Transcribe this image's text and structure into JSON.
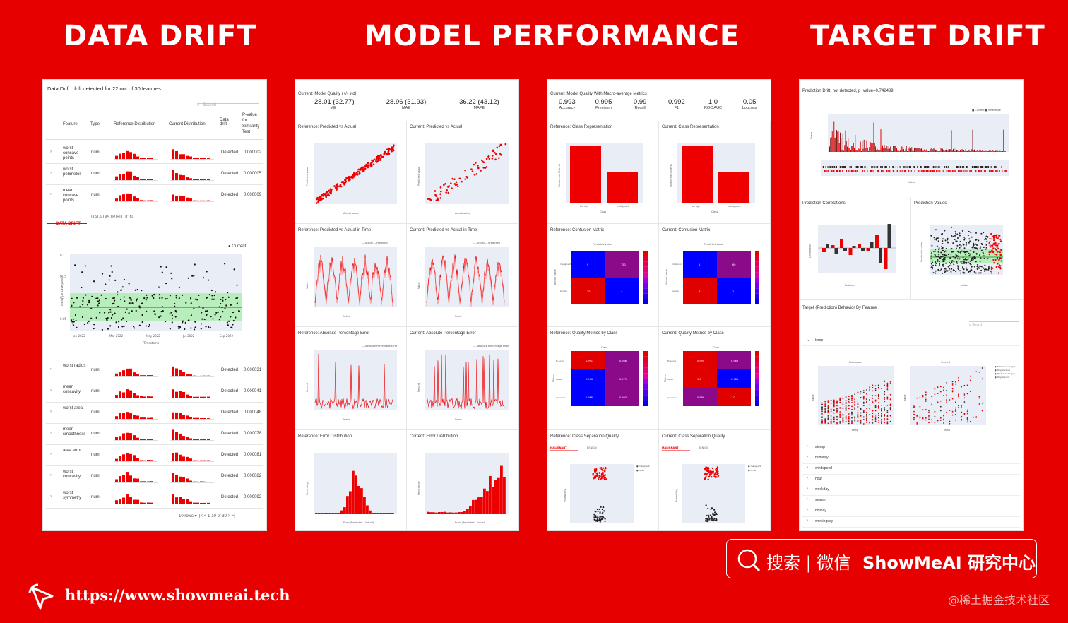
{
  "headings": {
    "data_drift": "DATA DRIFT",
    "model_performance": "MODEL PERFORMANCE",
    "target_drift": "TARGET DRIFT"
  },
  "data_drift_panel": {
    "title": "Data Drift: drift detected for 22 out of 30 features",
    "search_placeholder": "Search",
    "columns": [
      "Feature",
      "Type",
      "Reference Distribution",
      "Current Distribution",
      "Data drift",
      "P-Value for Similarity Test"
    ],
    "top_rows": [
      {
        "feature": "worst concave points",
        "type": "num",
        "drift": "Detected",
        "p": "0.000002"
      },
      {
        "feature": "worst perimeter",
        "type": "num",
        "drift": "Detected",
        "p": "0.000005"
      },
      {
        "feature": "mean concave points",
        "type": "num",
        "drift": "Detected",
        "p": "0.000009"
      }
    ],
    "tabs": [
      "DATA DRIFT",
      "DATA DISTRIBUTION"
    ],
    "legend_current": "Current",
    "x_ticks": [
      "Jan 2022",
      "Mar 2022",
      "May 2022",
      "Jul 2022",
      "Sep 2022"
    ],
    "x_label": "Timestamp",
    "y_label": "mean concave points",
    "y_ticks": [
      "0.2",
      "0.15",
      "0.1",
      "0.05"
    ],
    "bottom_rows": [
      {
        "feature": "worst radius",
        "type": "num",
        "drift": "Detected",
        "p": "0.000031"
      },
      {
        "feature": "mean concavity",
        "type": "num",
        "drift": "Detected",
        "p": "0.000041"
      },
      {
        "feature": "worst area",
        "type": "num",
        "drift": "Detected",
        "p": "0.000048"
      },
      {
        "feature": "mean smoothness",
        "type": "num",
        "drift": "Detected",
        "p": "0.000078"
      },
      {
        "feature": "area error",
        "type": "num",
        "drift": "Detected",
        "p": "0.000081"
      },
      {
        "feature": "worst concavity",
        "type": "num",
        "drift": "Detected",
        "p": "0.000082"
      },
      {
        "feature": "worst symmetry",
        "type": "num",
        "drift": "Detected",
        "p": "0.000092"
      }
    ],
    "pagination": {
      "rows": "10 rows",
      "range": "1-10 of 30"
    }
  },
  "regression_panel": {
    "title": "Current: Model Quality (+/- std)",
    "metrics": [
      {
        "value": "-28.01 (32.77)",
        "label": "ME"
      },
      {
        "value": "28.96 (31.93)",
        "label": "MAE"
      },
      {
        "value": "36.22 (43.12)",
        "label": "MAPE"
      }
    ],
    "cells": [
      "Reference: Predicted vs Actual",
      "Current: Predicted vs Actual",
      "Reference: Predicted vs Actual in Time",
      "Current: Predicted vs Actual in Time",
      "Reference: Absolute Percentage Error",
      "Current: Absolute Percentage Error",
      "Reference: Error Distribution",
      "Current: Error Distribution"
    ],
    "legend_actual": "Actual",
    "legend_predicted": "Predicted",
    "legend_ape": "Absolute Percentage Error",
    "x_label_actual": "Actual value",
    "y_label_pred": "Predicted value",
    "x_label_index": "Index",
    "y_label_value": "Value",
    "y_label_percent": "Percent",
    "x_label_error": "Error (Predicted - Actual)",
    "y_label_percentage": "Percentage"
  },
  "classification_panel": {
    "title": "Current: Model Quality With Macro-average Metrics",
    "metrics": [
      {
        "value": "0.993",
        "label": "Accuracy"
      },
      {
        "value": "0.995",
        "label": "Precision"
      },
      {
        "value": "0.99",
        "label": "Recall"
      },
      {
        "value": "0.992",
        "label": "F1"
      },
      {
        "value": "1.0",
        "label": "ROC AUC"
      },
      {
        "value": "0.05",
        "label": "LogLoss"
      }
    ],
    "cells": [
      "Reference: Class Representation",
      "Current: Class Representation",
      "Reference: Confusion Matrix",
      "Current: Confusion Matrix",
      "Reference: Quality Metrics by Class",
      "Current: Quality Metrics by Class",
      "Reference: Class Separation Quality",
      "Current: Class Separation Quality"
    ],
    "classes": [
      "benign",
      "malignant"
    ],
    "x_label_class": "Class",
    "y_label_count": "Number of Objects",
    "predicted_value": "Predicted value",
    "actual_value": "Actual value",
    "metric_rows": [
      "f1-score",
      "recall",
      "precision"
    ],
    "metric_label": "Metric",
    "separation_tabs": [
      "MALIGNANT",
      "BENIGN"
    ],
    "legend_malignant": "malignant",
    "legend_other": "other",
    "y_label_probability": "Probability",
    "ref_confusion": [
      "9",
      "150",
      "251",
      "4"
    ],
    "cur_confusion": [
      "1",
      "60",
      "91",
      "1"
    ],
    "ref_quality": [
      "0.991",
      "0.986",
      "0.996",
      "0.979",
      "0.986",
      "0.993"
    ],
    "cur_quality": [
      "0.995",
      "0.989",
      "1.0",
      "0.984",
      "0.989",
      "1.0"
    ]
  },
  "target_panel": {
    "title": "Prediction Drift: not detected, p_value=0.742439",
    "legend": [
      "Current",
      "Reference"
    ],
    "y_label_share": "Share",
    "x_label_value": "Value",
    "cells": [
      "Prediction Correlations",
      "Prediction Values"
    ],
    "y_label_correlation": "Correlation",
    "x_label_features": "Features",
    "y_label_pred": "Prediction value",
    "x_label_index": "Index",
    "behavior_title": "Target (Prediction) Behavior By Feature",
    "search_placeholder": "Search",
    "expanded_feature": "temp",
    "sub_titles": [
      "Reference",
      "Current"
    ],
    "scatter_legend": [
      "Reference target",
      "Target value",
      "Prediction target",
      "Target pred."
    ],
    "x_label_temp": "temp",
    "y_label_value": "value",
    "feature_rows": [
      "atemp",
      "humidity",
      "windspeed",
      "hour",
      "weekday",
      "season",
      "holiday",
      "workingday"
    ]
  },
  "footer": {
    "url": "https://www.showmeai.tech",
    "search_text": "搜索 | 微信",
    "brand": "ShowMeAI 研究中心",
    "watermark": "@稀土掘金技术社区"
  }
}
